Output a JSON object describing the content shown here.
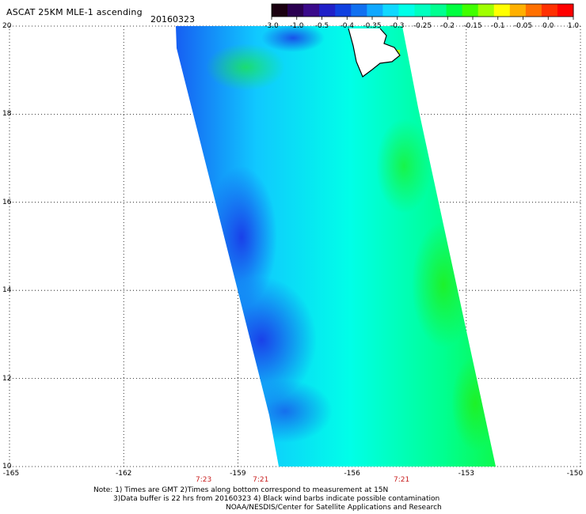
{
  "header": {
    "title": "ASCAT 25KM MLE-1 ascending",
    "date": "20160323"
  },
  "colorbar": {
    "ticks": [
      "-3.0",
      "-1.0",
      "-0.5",
      "-0.4",
      "-0.35",
      "-0.3",
      "-0.25",
      "-0.2",
      "-0.15",
      "-0.1",
      "-0.05",
      "0.0",
      "1.0"
    ],
    "colors": [
      "#1a0010",
      "#2a0050",
      "#3a0a8a",
      "#2020c8",
      "#1040e0",
      "#1070f0",
      "#10a8ff",
      "#10d8ff",
      "#00ffe8",
      "#00ffc0",
      "#00ff90",
      "#00ff40",
      "#40ff00",
      "#a0ff00",
      "#ffff00",
      "#ffb000",
      "#ff7000",
      "#ff3000",
      "#ff0000"
    ]
  },
  "axes": {
    "ylabels": [
      "20",
      "18",
      "16",
      "14",
      "12",
      "10"
    ],
    "xlabels": [
      "-165",
      "-162",
      "-159",
      "-156",
      "-153",
      "-150"
    ],
    "time_labels": [
      {
        "text": "7:23",
        "lon": -159.9
      },
      {
        "text": "7:21",
        "lon": -158.4
      },
      {
        "text": "7:21",
        "lon": -154.7
      }
    ],
    "lat_range": [
      10,
      20
    ],
    "lon_range": [
      -165,
      -150
    ],
    "grid": true
  },
  "notes": {
    "line1": "Note: 1) Times are GMT 2)Times along bottom correspond to measurement at 15N",
    "line2": "3)Data buffer is 22 hrs from 20160323 4) Black wind barbs indicate possible contamination",
    "line3": "NOAA/NESDIS/Center for Satellite Applications and Research"
  }
}
